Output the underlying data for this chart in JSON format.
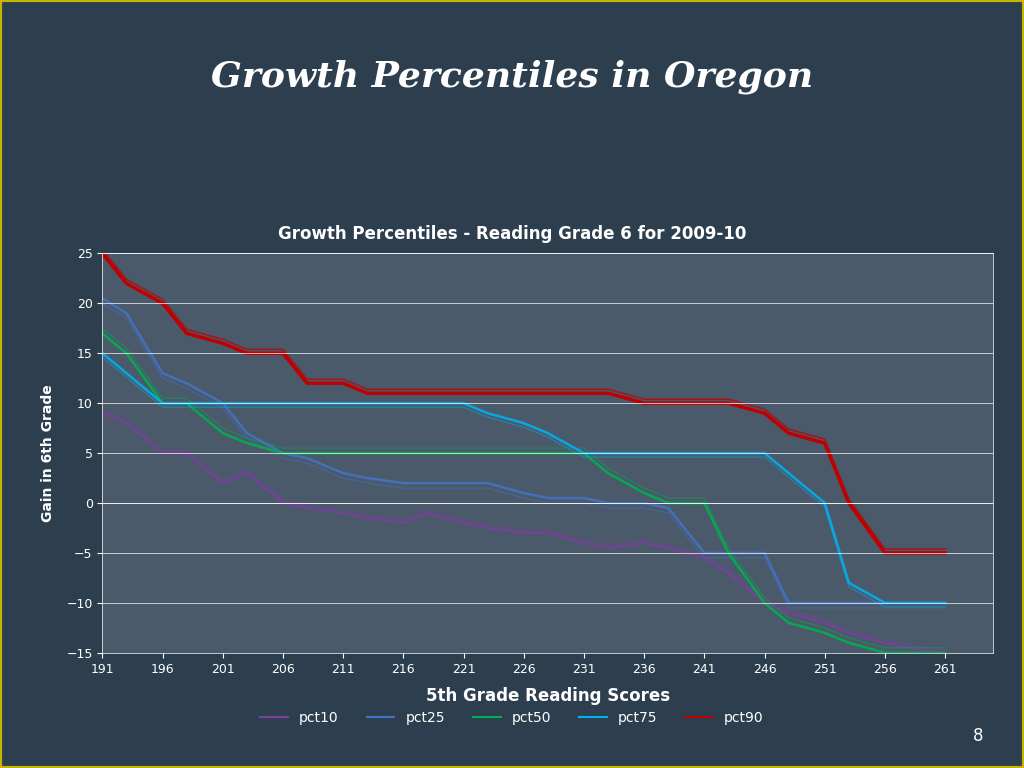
{
  "title_main": "Growth Percentiles in Oregon",
  "title_sub": "Growth Percentiles - Reading Grade 6 for 2009-10",
  "xlabel": "5th Grade Reading Scores",
  "ylabel": "Gain in 6th Grade",
  "x_ticks": [
    191,
    196,
    201,
    206,
    211,
    216,
    221,
    226,
    231,
    236,
    241,
    246,
    251,
    256,
    261
  ],
  "ylim": [
    -15,
    25
  ],
  "xlim": [
    191,
    265
  ],
  "yticks": [
    -15,
    -10,
    -5,
    0,
    5,
    10,
    15,
    20,
    25
  ],
  "background_outer": "#2d3f4f",
  "background_inner": "#4a5a6a",
  "grid_color": "#ffffff",
  "text_color": "#ffffff",
  "border_color": "#c8b400",
  "page_number": "8",
  "pct10": {
    "x": [
      191,
      193,
      196,
      198,
      201,
      203,
      206,
      208,
      211,
      213,
      216,
      218,
      221,
      223,
      226,
      228,
      231,
      233,
      236,
      238,
      241,
      243,
      246,
      248,
      251,
      253,
      256,
      258,
      261
    ],
    "y": [
      9,
      8,
      5,
      5,
      2,
      3,
      0,
      -0.5,
      -1,
      -1.5,
      -2,
      -1,
      -2,
      -2.5,
      -3,
      -3,
      -4,
      -4.5,
      -4,
      -4.5,
      -5.5,
      -7,
      -10,
      -11,
      -12,
      -13,
      -14,
      -14.5,
      -15
    ],
    "color": "#7b3fa0",
    "label": "pct10"
  },
  "pct25": {
    "x": [
      191,
      193,
      196,
      198,
      201,
      203,
      206,
      208,
      211,
      213,
      216,
      218,
      221,
      223,
      226,
      228,
      231,
      233,
      236,
      238,
      241,
      243,
      246,
      248,
      251,
      253,
      256,
      258,
      261
    ],
    "y": [
      20.5,
      19,
      13,
      12,
      10,
      7,
      5,
      4.5,
      3,
      2.5,
      2,
      2,
      2,
      2,
      1,
      0.5,
      0.5,
      0,
      0,
      -0.5,
      -5,
      -5,
      -5,
      -10,
      -10,
      -10,
      -10,
      -10,
      -10
    ],
    "color": "#4472c4",
    "label": "pct25"
  },
  "pct50": {
    "x": [
      191,
      193,
      196,
      198,
      201,
      203,
      206,
      208,
      211,
      213,
      216,
      218,
      221,
      223,
      226,
      228,
      231,
      233,
      236,
      238,
      241,
      243,
      246,
      248,
      251,
      253,
      256,
      258,
      261
    ],
    "y": [
      17,
      15,
      10,
      10,
      7,
      6,
      5,
      5,
      5,
      5,
      5,
      5,
      5,
      5,
      5,
      5,
      5,
      3,
      1,
      0,
      0,
      -5,
      -10,
      -12,
      -13,
      -14,
      -15,
      -15,
      -15
    ],
    "color": "#00b050",
    "label": "pct50"
  },
  "pct75": {
    "x": [
      191,
      193,
      196,
      198,
      201,
      203,
      206,
      208,
      211,
      213,
      216,
      218,
      221,
      223,
      226,
      228,
      231,
      233,
      236,
      238,
      241,
      243,
      246,
      248,
      251,
      253,
      256,
      258,
      261
    ],
    "y": [
      15,
      13,
      10,
      10,
      10,
      10,
      10,
      10,
      10,
      10,
      10,
      10,
      10,
      9,
      8,
      7,
      5,
      5,
      5,
      5,
      5,
      5,
      5,
      3,
      0,
      -8,
      -10,
      -10,
      -10
    ],
    "color": "#00b0f0",
    "label": "pct75"
  },
  "pct90": {
    "x": [
      191,
      193,
      196,
      198,
      201,
      203,
      206,
      208,
      211,
      213,
      216,
      218,
      221,
      223,
      226,
      228,
      231,
      233,
      236,
      238,
      241,
      243,
      246,
      248,
      251,
      253,
      256,
      258,
      261
    ],
    "y": [
      25,
      22,
      20,
      17,
      16,
      15,
      15,
      12,
      12,
      11,
      11,
      11,
      11,
      11,
      11,
      11,
      11,
      11,
      10,
      10,
      10,
      10,
      9,
      7,
      6,
      0,
      -5,
      -5,
      -5
    ],
    "color": "#c00000",
    "label": "pct90"
  }
}
